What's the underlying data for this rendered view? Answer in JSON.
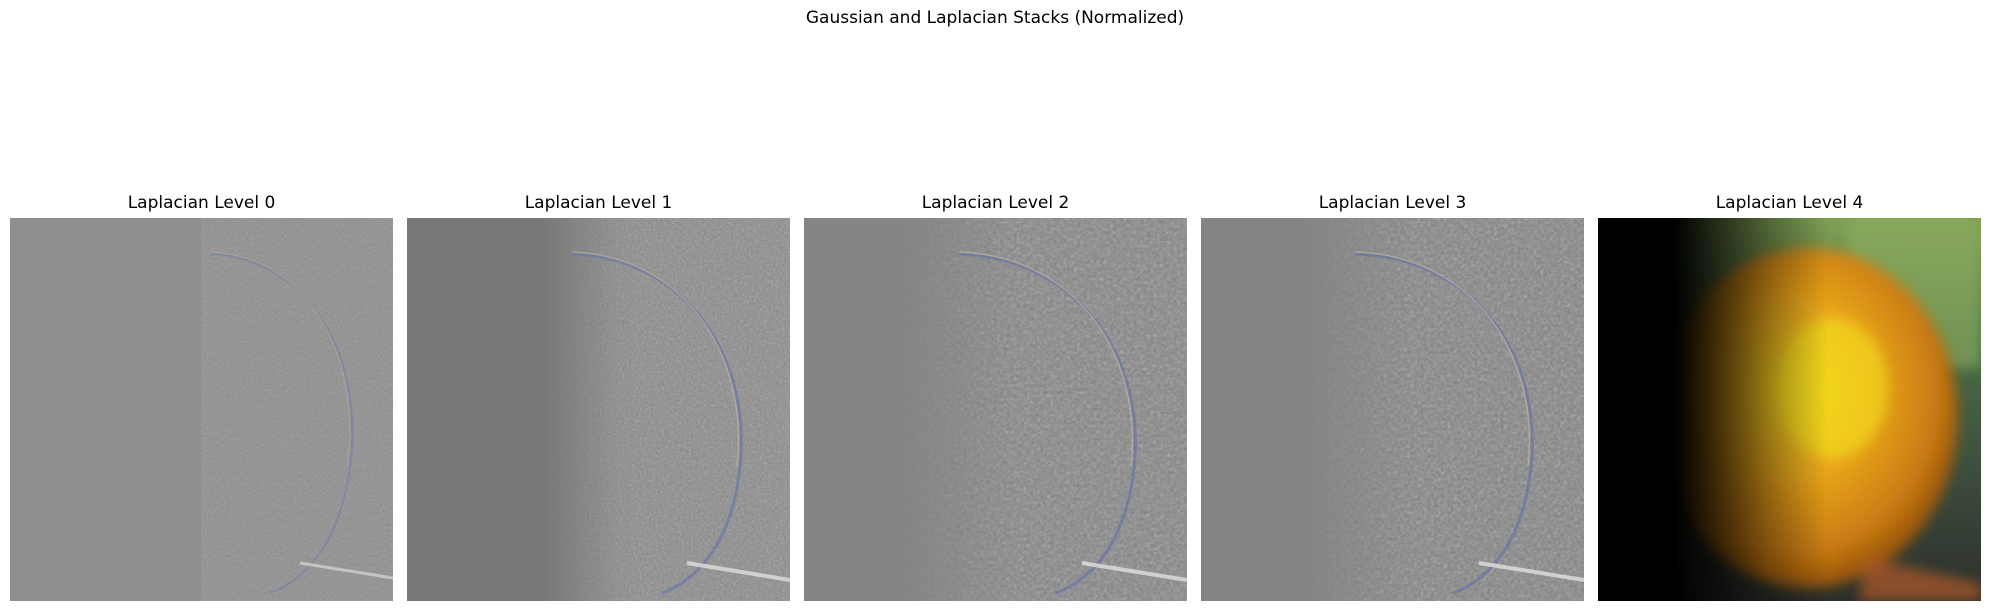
{
  "figure": {
    "title": "Gaussian and Laplacian Stacks (Normalized)"
  },
  "panels": [
    {
      "title": "Laplacian Level 0",
      "level": 0
    },
    {
      "title": "Laplacian Level 1",
      "level": 1
    },
    {
      "title": "Laplacian Level 2",
      "level": 2
    },
    {
      "title": "Laplacian Level 3",
      "level": 3
    },
    {
      "title": "Laplacian Level 4",
      "level": 4
    }
  ]
}
